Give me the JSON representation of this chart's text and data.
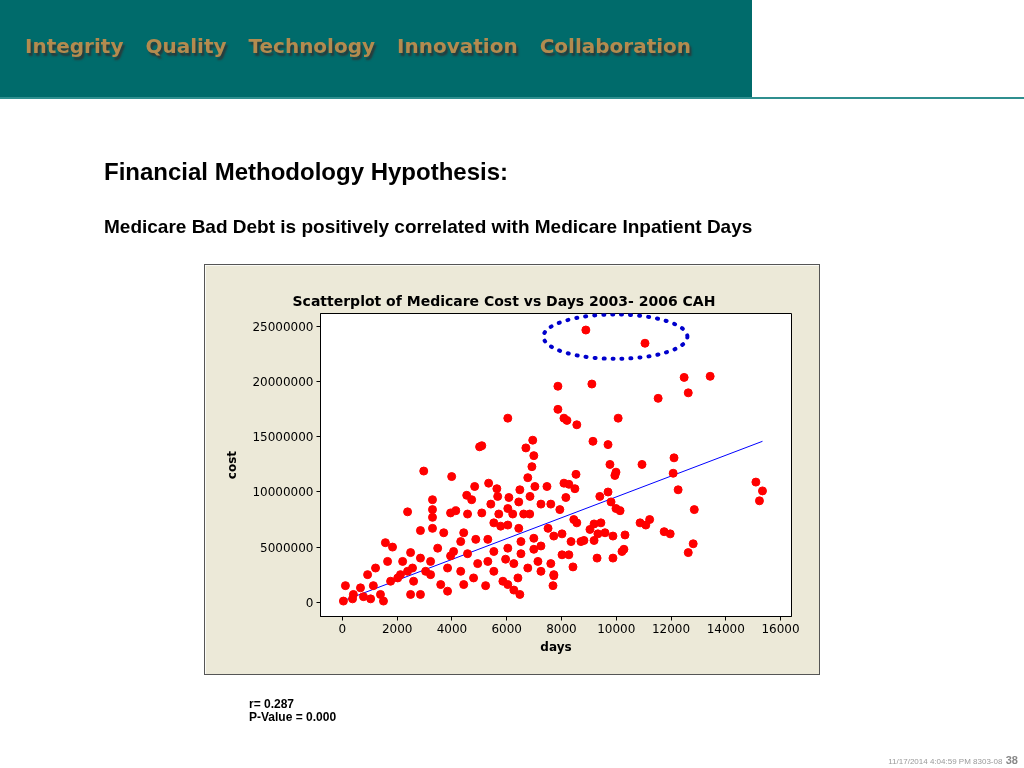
{
  "chart_data": {
    "type": "scatter",
    "title": "Scatterplot of Medicare Cost vs Days  2003- 2006 CAH",
    "xlabel": "days",
    "ylabel": "cost",
    "annotations": [
      "Integrity",
      "Quality",
      "Technology",
      "Innovation",
      "Collaboration",
      "Financial Methodology Hypothesis:",
      "Medicare Bad Debt is positively correlated with Medicare Inpatient Days",
      "r= 0.287",
      "P-Value = 0.000",
      "11/17/2014 4:04:59 PM 8303-08",
      "38"
    ],
    "xlim": [
      -800,
      16400
    ],
    "ylim": [
      -1300000,
      26200000
    ],
    "xticks": [
      0,
      2000,
      4000,
      6000,
      8000,
      10000,
      12000,
      14000,
      16000
    ],
    "yticks": [
      0,
      5000000,
      10000000,
      15000000,
      20000000,
      25000000
    ],
    "series": [
      {
        "color": "#ff0000",
        "marker": "circle",
        "x": [
          37,
          110,
          370,
          770,
          1030,
          1390,
          1500,
          920,
          1210,
          1650,
          2200,
          2490,
          2020,
          2560,
          2850,
          3040,
          2490,
          2850,
          3220,
          3590,
          3840,
          4320,
          3950,
          4570,
          4940,
          5230,
          4790,
          5530,
          5960,
          5860,
          6260,
          6520,
          6770,
          6040,
          6410,
          7140,
          7610,
          7250,
          6260,
          6480,
          6990,
          7690,
          1570,
          1830,
          2850,
          3290,
          3700,
          4430,
          4870,
          5310,
          5530,
          5780,
          6040,
          6440,
          6990,
          7510,
          7720,
          2380,
          2970,
          3990,
          4830,
          4540,
          4720,
          5340,
          5640,
          5670,
          6080,
          6480,
          6770,
          7030,
          7470,
          6850,
          6440,
          3290,
          3290,
          3290,
          3950,
          4140,
          4570,
          5090,
          5420,
          5710,
          6040,
          6220,
          6620,
          6840,
          7250,
          7610,
          12260,
          12080,
          9950,
          9700,
          9400,
          9810,
          9990,
          10140,
          8490,
          8090,
          8270,
          8530,
          8160,
          7940,
          8450,
          8560,
          9190,
          9440,
          9040,
          9330,
          9590,
          9880,
          10320,
          8710,
          8820,
          9190,
          8350,
          8020,
          10210,
          10280,
          9300,
          9880,
          8420,
          7720,
          8020,
          8270,
          10870,
          11080,
          11220,
          11750,
          11970,
          12850,
          12810,
          12630,
          15100,
          15340,
          15230,
          8890,
          11050,
          7870,
          9110,
          12480,
          13430,
          12630,
          11530,
          7870,
          8090,
          8200,
          8560,
          10070,
          9150,
          9700,
          12110,
          9770,
          9990,
          10940,
          6040,
          5010,
          5090,
          6950,
          6700,
          6990,
          6920,
          400,
          660,
          1130,
          1760,
          2120,
          2380,
          2600,
          3220,
          3480,
          4060,
          4320,
          5310,
          4430,
          3840,
          5530,
          6040,
          6520,
          7250,
          7720
        ],
        "values": [
          100000,
          1500000,
          300000,
          500000,
          300000,
          700000,
          100000,
          2500000,
          3100000,
          3700000,
          3700000,
          4500000,
          2200000,
          3100000,
          4000000,
          2800000,
          700000,
          700000,
          2500000,
          1600000,
          3100000,
          2800000,
          4200000,
          4400000,
          3500000,
          1500000,
          2200000,
          2800000,
          3900000,
          1900000,
          3500000,
          4400000,
          3100000,
          1600000,
          2200000,
          3700000,
          3500000,
          5100000,
          1100000,
          700000,
          4800000,
          1500000,
          5400000,
          5000000,
          6500000,
          6700000,
          6300000,
          6300000,
          5700000,
          5700000,
          7200000,
          6900000,
          7000000,
          6700000,
          5800000,
          6700000,
          6000000,
          8200000,
          11900000,
          11400000,
          10500000,
          9700000,
          9300000,
          10800000,
          10300000,
          9600000,
          9500000,
          10200000,
          11300000,
          10500000,
          10500000,
          9600000,
          9100000,
          9300000,
          8400000,
          7700000,
          8100000,
          8300000,
          8000000,
          8100000,
          8900000,
          8000000,
          8500000,
          8000000,
          8000000,
          8000000,
          8900000,
          8900000,
          10200000,
          11700000,
          11500000,
          10000000,
          9600000,
          9100000,
          8500000,
          8300000,
          10300000,
          10800000,
          10700000,
          11600000,
          9500000,
          8400000,
          7500000,
          7200000,
          7100000,
          7200000,
          6600000,
          6200000,
          6300000,
          6000000,
          6100000,
          5500000,
          5600000,
          5600000,
          5500000,
          6200000,
          4600000,
          4800000,
          4000000,
          4000000,
          3200000,
          2400000,
          4300000,
          4300000,
          7200000,
          7000000,
          7500000,
          6400000,
          6200000,
          8400000,
          5300000,
          4500000,
          10900000,
          10100000,
          9200000,
          24700000,
          23500000,
          19600000,
          19800000,
          20400000,
          20500000,
          19000000,
          18500000,
          17500000,
          16700000,
          16500000,
          16100000,
          16700000,
          14600000,
          14300000,
          13100000,
          12500000,
          11800000,
          12500000,
          16700000,
          14100000,
          14200000,
          14700000,
          14000000,
          13300000,
          12300000,
          700000,
          1300000,
          1500000,
          1900000,
          2500000,
          2800000,
          1900000,
          3700000,
          4900000,
          4600000,
          5500000,
          3700000,
          1600000,
          1000000,
          4600000,
          4900000,
          5500000,
          2800000,
          2500000
        ]
      },
      {
        "type": "line",
        "color": "#0000ff",
        "x": [
          0,
          15340
        ],
        "values": [
          100000,
          14600000
        ]
      }
    ]
  }
}
